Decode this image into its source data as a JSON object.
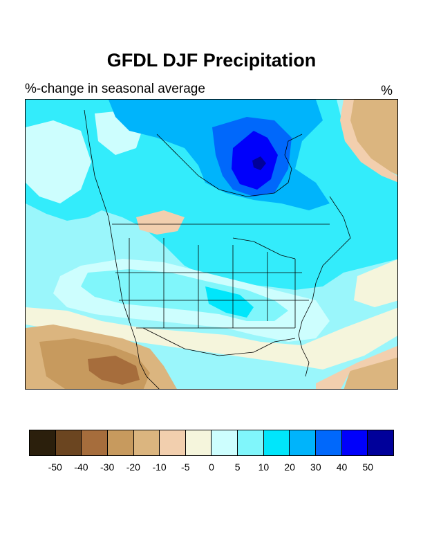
{
  "title": "GFDL DJF Precipitation",
  "subtitle_left": "%-change in seasonal average",
  "subtitle_right": "%",
  "map": {
    "variable": "Precipitation",
    "season": "DJF",
    "model": "GFDL",
    "units": "%-change",
    "region": "North America"
  },
  "legend": {
    "colors": [
      "#2b1f0c",
      "#6b4520",
      "#a66d3c",
      "#c79a5e",
      "#dbb57f",
      "#f2cfae",
      "#f5f5dc",
      "#cdfefe",
      "#80f6fb",
      "#00e6fb",
      "#00b4fb",
      "#0068fb",
      "#0000fb",
      "#00009a"
    ],
    "labels": [
      "-50",
      "-40",
      "-30",
      "-20",
      "-10",
      "-5",
      "0",
      "5",
      "10",
      "20",
      "30",
      "40",
      "50"
    ]
  }
}
